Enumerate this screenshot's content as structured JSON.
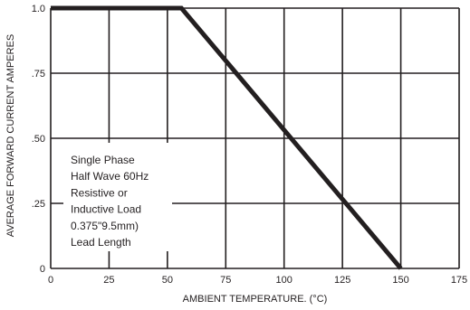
{
  "chart_data": {
    "type": "line",
    "xlabel": "AMBIENT TEMPERATURE. (°C)",
    "ylabel": "AVERAGE FORWARD CURRENT AMPERES",
    "xlim": [
      0,
      175
    ],
    "ylim": [
      0,
      1.0
    ],
    "grid": true,
    "x_ticks": [
      0,
      25,
      50,
      75,
      100,
      125,
      150,
      175
    ],
    "x_tick_labels": [
      "0",
      "25",
      "50",
      "75",
      "100",
      "125",
      "150",
      "175"
    ],
    "y_ticks": [
      0,
      0.25,
      0.5,
      0.75,
      1.0
    ],
    "y_tick_labels": [
      "0",
      ".25",
      ".50",
      ".75",
      "1.0"
    ],
    "series": [
      {
        "x": [
          0,
          56,
          150
        ],
        "y": [
          1.0,
          1.0,
          0
        ],
        "color": "#231f20"
      }
    ],
    "annotation": {
      "position": "lower-left",
      "lines": [
        "Single Phase",
        "Half Wave 60Hz",
        "Resistive or",
        "Inductive Load",
        "0.375\"9.5mm)",
        "Lead Length"
      ]
    }
  }
}
